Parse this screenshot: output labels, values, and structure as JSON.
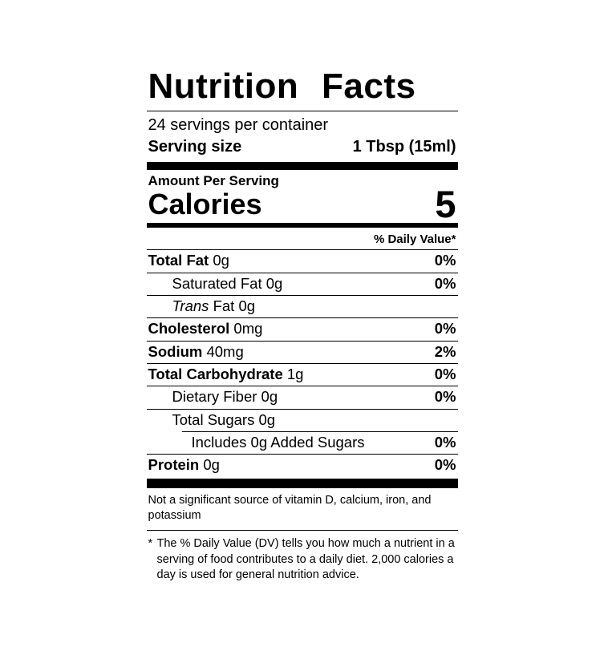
{
  "label": {
    "title": "Nutrition Facts",
    "servings_per_container": "24 servings per container",
    "serving_size": {
      "label": "Serving size",
      "value": "1 Tbsp (15ml)"
    },
    "amount_per_serving": "Amount Per Serving",
    "calories": {
      "label": "Calories",
      "value": "5"
    },
    "daily_value_header": "% Daily Value*",
    "rows": [
      {
        "name": "Total Fat",
        "amount": "0g",
        "dv": "0%"
      },
      {
        "name": "Saturated Fat",
        "amount": "0g",
        "dv": "0%"
      },
      {
        "name_italic": "Trans",
        "name": "Fat",
        "amount": "0g",
        "dv": ""
      },
      {
        "name": "Cholesterol",
        "amount": "0mg",
        "dv": "0%"
      },
      {
        "name": "Sodium",
        "amount": "40mg",
        "dv": "2%"
      },
      {
        "name": "Total Carbohydrate",
        "amount": "1g",
        "dv": "0%"
      },
      {
        "name": "Dietary Fiber",
        "amount": "0g",
        "dv": "0%"
      },
      {
        "name": "Total Sugars",
        "amount": "0g",
        "dv": ""
      },
      {
        "name": "Includes 0g Added Sugars",
        "amount": "",
        "dv": "0%"
      },
      {
        "name": "Protein",
        "amount": "0g",
        "dv": "0%"
      }
    ],
    "not_significant_lines": [
      "Not a significant source of vitamin D, calcium, iron, and",
      "potassium"
    ],
    "dv_footnote_marker": "*",
    "dv_footnote_lines": [
      "The % Daily Value (DV) tells you how much a nutrient in a",
      "serving of food contributes to a daily diet. 2,000 calories a",
      "day is used for general nutrition advice."
    ],
    "colors": {
      "ink": "#000000",
      "background": "#ffffff"
    }
  }
}
